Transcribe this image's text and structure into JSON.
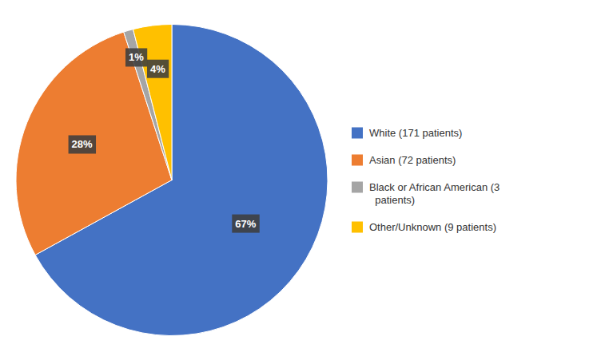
{
  "chart_data": {
    "type": "pie",
    "categories": [
      "White (171 patients)",
      "Asian (72 patients)",
      "Black or African American (3\n  patients)",
      "Other/Unknown (9 patients)"
    ],
    "values": [
      67,
      28,
      1,
      4
    ],
    "value_labels": [
      "67%",
      "28%",
      "1%",
      "4%"
    ],
    "colors": [
      "#4472C4",
      "#ED7D31",
      "#A5A5A5",
      "#FFC000"
    ],
    "data_labels": true,
    "legend": "right"
  }
}
